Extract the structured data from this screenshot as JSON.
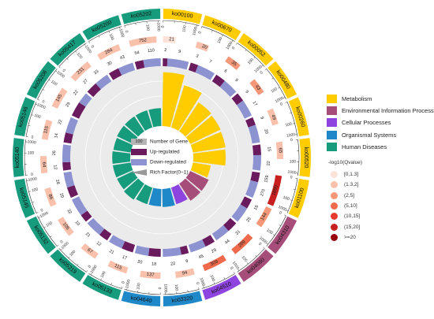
{
  "chart_data": {
    "type": "circos",
    "class_colors": {
      "Metabolism": "#FFCC00",
      "Environmental Information Processing": "#A64D79",
      "Cellular Processes": "#8E44DE",
      "Organismal Systems": "#1E88C8",
      "Human Diseases": "#169B7D"
    },
    "pathways": [
      {
        "id": "ko00100",
        "class": "Metabolism",
        "genes": 21,
        "up": 2,
        "down": 9,
        "rich": 0.9,
        "q_level": 0
      },
      {
        "id": "ko00670",
        "class": "Metabolism",
        "genes": 20,
        "up": 3,
        "down": 7,
        "rich": 0.74,
        "q_level": 1
      },
      {
        "id": "ko00052",
        "class": "Metabolism",
        "genes": 35,
        "up": 6,
        "down": 9,
        "rich": 0.58,
        "q_level": 2
      },
      {
        "id": "ko00480",
        "class": "Metabolism",
        "genes": 43,
        "up": 9,
        "down": 17,
        "rich": 0.56,
        "q_level": 2
      },
      {
        "id": "ko00260",
        "class": "Metabolism",
        "genes": 49,
        "up": 9,
        "down": 20,
        "rich": 0.55,
        "q_level": 1
      },
      {
        "id": "ko00520",
        "class": "Metabolism",
        "genes": 65,
        "up": 15,
        "down": 22,
        "rich": 0.54,
        "q_level": 1
      },
      {
        "id": "ko01100",
        "class": "Metabolism",
        "genes": 1690,
        "up": 159,
        "down": 270,
        "rich": 0.3,
        "q_level": 5
      },
      {
        "id": "ko04310",
        "class": "Environmental Information Processing",
        "genes": 144,
        "up": 15,
        "down": 25,
        "rich": 0.34,
        "q_level": 2
      },
      {
        "id": "ko04060",
        "class": "Environmental Information Processing",
        "genes": 289,
        "up": 31,
        "down": 44,
        "rich": 0.34,
        "q_level": 3
      },
      {
        "id": "ko04510",
        "class": "Cellular Processes",
        "genes": 309,
        "up": 29,
        "down": 45,
        "rich": 0.29,
        "q_level": 3
      },
      {
        "id": "ko03320",
        "class": "Organismal Systems",
        "genes": 94,
        "up": 9,
        "down": 22,
        "rich": 0.3,
        "q_level": 1
      },
      {
        "id": "ko04640",
        "class": "Organismal Systems",
        "genes": 137,
        "up": 18,
        "down": 20,
        "rich": 0.29,
        "q_level": 1
      },
      {
        "id": "ko05133",
        "class": "Human Diseases",
        "genes": 115,
        "up": 17,
        "down": 21,
        "rich": 0.29,
        "q_level": 1
      },
      {
        "id": "ko05219",
        "class": "Human Diseases",
        "genes": 67,
        "up": 12,
        "down": 21,
        "rich": 0.32,
        "q_level": 1
      },
      {
        "id": "ko05132",
        "class": "Human Diseases",
        "genes": 105,
        "up": 10,
        "down": 22,
        "rich": 0.3,
        "q_level": 1
      },
      {
        "id": "ko05145",
        "class": "Human Diseases",
        "genes": 86,
        "up": 20,
        "down": 28,
        "rich": 0.3,
        "q_level": 1
      },
      {
        "id": "ko05140",
        "class": "Human Diseases",
        "genes": 64,
        "up": 12,
        "down": 26,
        "rich": 0.3,
        "q_level": 1
      },
      {
        "id": "ko05146",
        "class": "Human Diseases",
        "genes": 115,
        "up": 14,
        "down": 22,
        "rich": 0.29,
        "q_level": 1
      },
      {
        "id": "ko05206",
        "class": "Human Diseases",
        "genes": 145,
        "up": 29,
        "down": 22,
        "rich": 0.3,
        "q_level": 1
      },
      {
        "id": "ko05417",
        "class": "Human Diseases",
        "genes": 231,
        "up": 27,
        "down": 33,
        "rich": 0.3,
        "q_level": 1
      },
      {
        "id": "ko05200",
        "class": "Human Diseases",
        "genes": 284,
        "up": 30,
        "down": 43,
        "rich": 0.3,
        "q_level": 1
      },
      {
        "id": "ko05202",
        "class": "Human Diseases",
        "genes": 752,
        "up": 54,
        "down": 110,
        "rich": 0.3,
        "q_level": 1
      }
    ],
    "ring_ticks": [
      "0",
      "100",
      "1000"
    ],
    "center_legend": [
      "Number of Gene",
      "Up-regulated",
      "Down-regulated",
      "Rich Factor(0~1)"
    ],
    "center_colors": {
      "genes": "#B5B5B5",
      "up": "#6A1B5E",
      "down": "#8C93D0",
      "rich": "#999999"
    },
    "q_legend": {
      "title": "-log10(Qvalue)",
      "levels": [
        {
          "label": "[0,1.3]",
          "color": "#FCE3DA"
        },
        {
          "label": "(1.3,2]",
          "color": "#F9C0AC"
        },
        {
          "label": "(2,5]",
          "color": "#F59879"
        },
        {
          "label": "(5,10]",
          "color": "#EF6A4C"
        },
        {
          "label": "(10,15]",
          "color": "#E53A2C"
        },
        {
          "label": "(15,20]",
          "color": "#C8201E"
        },
        {
          "label": ">=20",
          "color": "#99000D"
        }
      ]
    }
  }
}
